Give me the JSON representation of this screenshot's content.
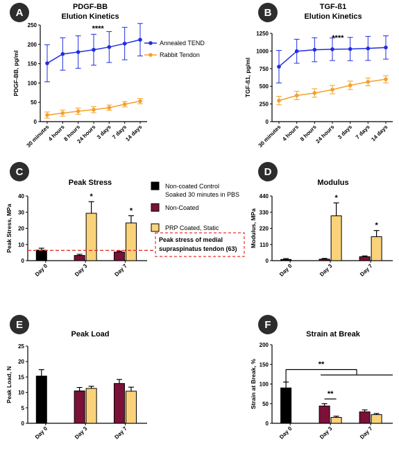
{
  "colors": {
    "control": "#000000",
    "noncoated": "#7b1038",
    "prp": "#f9d27a",
    "tend": "#1f2de0",
    "rabbit": "#f4a02a",
    "threshold": "#e8302a"
  },
  "chart_data": [
    {
      "id": "A",
      "letter": "A",
      "type": "line",
      "title": [
        "PDGF-BB",
        "Elution Kinetics"
      ],
      "ylabel": "PDGF-BB, pg/ml",
      "categories": [
        "30 minutes",
        "4 hours",
        "8 hours",
        "24 hours",
        "3 days",
        "7 days",
        "14 days"
      ],
      "ylim": [
        0,
        250
      ],
      "yticks": [
        0,
        50,
        100,
        150,
        200,
        250
      ],
      "series": [
        {
          "name": "Annealed TEND",
          "values": [
            151,
            175,
            180,
            186,
            193,
            202,
            212
          ],
          "err": [
            48,
            42,
            42,
            40,
            40,
            42,
            42
          ],
          "color_key": "tend"
        },
        {
          "name": "Rabbit Tendon",
          "values": [
            17,
            22,
            27,
            31,
            36,
            45,
            53
          ],
          "err": [
            8,
            8,
            8,
            8,
            7,
            7,
            7
          ],
          "color_key": "rabbit"
        }
      ],
      "annotations": [
        {
          "text": "****",
          "x_index": 3.5,
          "y": 235
        }
      ]
    },
    {
      "id": "B",
      "letter": "B",
      "type": "line",
      "title": [
        "TGF-ß1",
        "Elution Kinetics"
      ],
      "ylabel": "TGF-ß1, pg/ml",
      "categories": [
        "30 minutes",
        "4 hours",
        "8 hours",
        "24 hours",
        "3 days",
        "7 days",
        "14 days"
      ],
      "ylim": [
        0,
        1250
      ],
      "yticks": [
        0,
        250,
        500,
        750,
        1000,
        1250
      ],
      "series": [
        {
          "name": "Annealed TEND",
          "values": [
            778,
            997,
            1018,
            1025,
            1028,
            1037,
            1050
          ],
          "err": [
            230,
            170,
            170,
            160,
            165,
            170,
            165
          ],
          "color_key": "tend"
        },
        {
          "name": "Rabbit Tendon",
          "values": [
            298,
            370,
            405,
            453,
            514,
            563,
            600
          ],
          "err": [
            60,
            60,
            60,
            60,
            60,
            55,
            50
          ],
          "color_key": "rabbit"
        }
      ],
      "annotations": [
        {
          "text": "****",
          "x_index": 3.5,
          "y": 1150
        }
      ]
    },
    {
      "id": "C",
      "letter": "C",
      "type": "bar",
      "title": "Peak Stress",
      "ylabel": "Peak Stress, MPa",
      "categories": [
        "Day 0",
        "Day 3",
        "Day 7"
      ],
      "ylim": [
        0,
        40
      ],
      "yticks": [
        0,
        10,
        20,
        30,
        40
      ],
      "series": [
        {
          "name": "Non-coated Control Soaked 30 minutes in PBS",
          "values": [
            6.5,
            null,
            null
          ],
          "err": [
            1.2,
            null,
            null
          ],
          "color_key": "control"
        },
        {
          "name": "Non-Coated",
          "values": [
            null,
            3.2,
            5.3
          ],
          "err": [
            null,
            0.7,
            0.6
          ],
          "color_key": "noncoated"
        },
        {
          "name": "PRP Coated, Static",
          "values": [
            null,
            29.3,
            23.3
          ],
          "err": [
            null,
            7.2,
            4.5
          ],
          "color_key": "prp"
        }
      ],
      "stars": [
        {
          "cat": 1,
          "series": 2,
          "text": "*"
        },
        {
          "cat": 2,
          "series": 2,
          "text": "*"
        }
      ],
      "threshold": {
        "value": 6.3,
        "label": [
          "Peak stress of medial",
          "supraspinatus tendon (63)"
        ]
      }
    },
    {
      "id": "D",
      "letter": "D",
      "type": "bar",
      "title": "Modulus",
      "ylabel": "Modulus, MPa",
      "categories": [
        "Day 0",
        "Day 3",
        "Day 7"
      ],
      "ylim": [
        0,
        440
      ],
      "yticks": [
        0,
        110,
        220,
        330,
        440
      ],
      "series": [
        {
          "name": "Non-coated Control Soaked 30 minutes in PBS",
          "values": [
            8,
            null,
            null
          ],
          "err": [
            6,
            null,
            null
          ],
          "color_key": "control"
        },
        {
          "name": "Non-Coated",
          "values": [
            null,
            10,
            27
          ],
          "err": [
            null,
            5,
            5
          ],
          "color_key": "noncoated"
        },
        {
          "name": "PRP Coated, Static",
          "values": [
            null,
            305,
            163
          ],
          "err": [
            null,
            88,
            42
          ],
          "color_key": "prp"
        }
      ],
      "stars": [
        {
          "cat": 1,
          "series": 2,
          "text": "*"
        },
        {
          "cat": 2,
          "series": 2,
          "text": "*"
        }
      ]
    },
    {
      "id": "E",
      "letter": "E",
      "type": "bar",
      "title": "Peak Load",
      "ylabel": "Peak Load, N",
      "categories": [
        "Day 0",
        "Day 3",
        "Day 7"
      ],
      "ylim": [
        0,
        25
      ],
      "yticks": [
        0,
        5,
        10,
        15,
        20,
        25
      ],
      "series": [
        {
          "name": "Non-coated Control Soaked 30 minutes in PBS",
          "values": [
            15.3,
            null,
            null
          ],
          "err": [
            2.1,
            null,
            null
          ],
          "color_key": "control"
        },
        {
          "name": "Non-Coated",
          "values": [
            null,
            10.5,
            12.9
          ],
          "err": [
            null,
            1.1,
            1.3
          ],
          "color_key": "noncoated"
        },
        {
          "name": "PRP Coated, Static",
          "values": [
            null,
            11.3,
            10.4
          ],
          "err": [
            null,
            0.7,
            1.3
          ],
          "color_key": "prp"
        }
      ]
    },
    {
      "id": "F",
      "letter": "F",
      "type": "bar",
      "title": "Strain at Break",
      "ylabel": "Strain at Break, %",
      "categories": [
        "Day 0",
        "Day 3",
        "Day 7"
      ],
      "ylim": [
        0,
        200
      ],
      "yticks": [
        0,
        50,
        100,
        150,
        200
      ],
      "series": [
        {
          "name": "Non-coated Control Soaked 30 minutes in PBS",
          "values": [
            90,
            null,
            null
          ],
          "err": [
            15,
            null,
            null
          ],
          "color_key": "control"
        },
        {
          "name": "Non-Coated",
          "values": [
            null,
            44,
            29
          ],
          "err": [
            null,
            6,
            5
          ],
          "color_key": "noncoated"
        },
        {
          "name": "PRP Coated, Static",
          "values": [
            null,
            15,
            22
          ],
          "err": [
            null,
            3,
            3
          ],
          "color_key": "prp"
        }
      ],
      "brackets": [
        {
          "text": "**",
          "from": [
            0,
            0
          ],
          "to_span": [
            1,
            2
          ],
          "y": 137
        },
        {
          "text": "**",
          "from": [
            1,
            1
          ],
          "to": [
            1,
            2
          ],
          "y": 62
        }
      ]
    }
  ],
  "legend": {
    "entries": [
      {
        "lines": [
          "Non-coated Control",
          "Soaked 30 minutes in PBS"
        ],
        "color_key": "control"
      },
      {
        "lines": [
          "Non-Coated"
        ],
        "color_key": "noncoated"
      },
      {
        "lines": [
          "PRP Coated, Static"
        ],
        "color_key": "prp"
      }
    ]
  }
}
